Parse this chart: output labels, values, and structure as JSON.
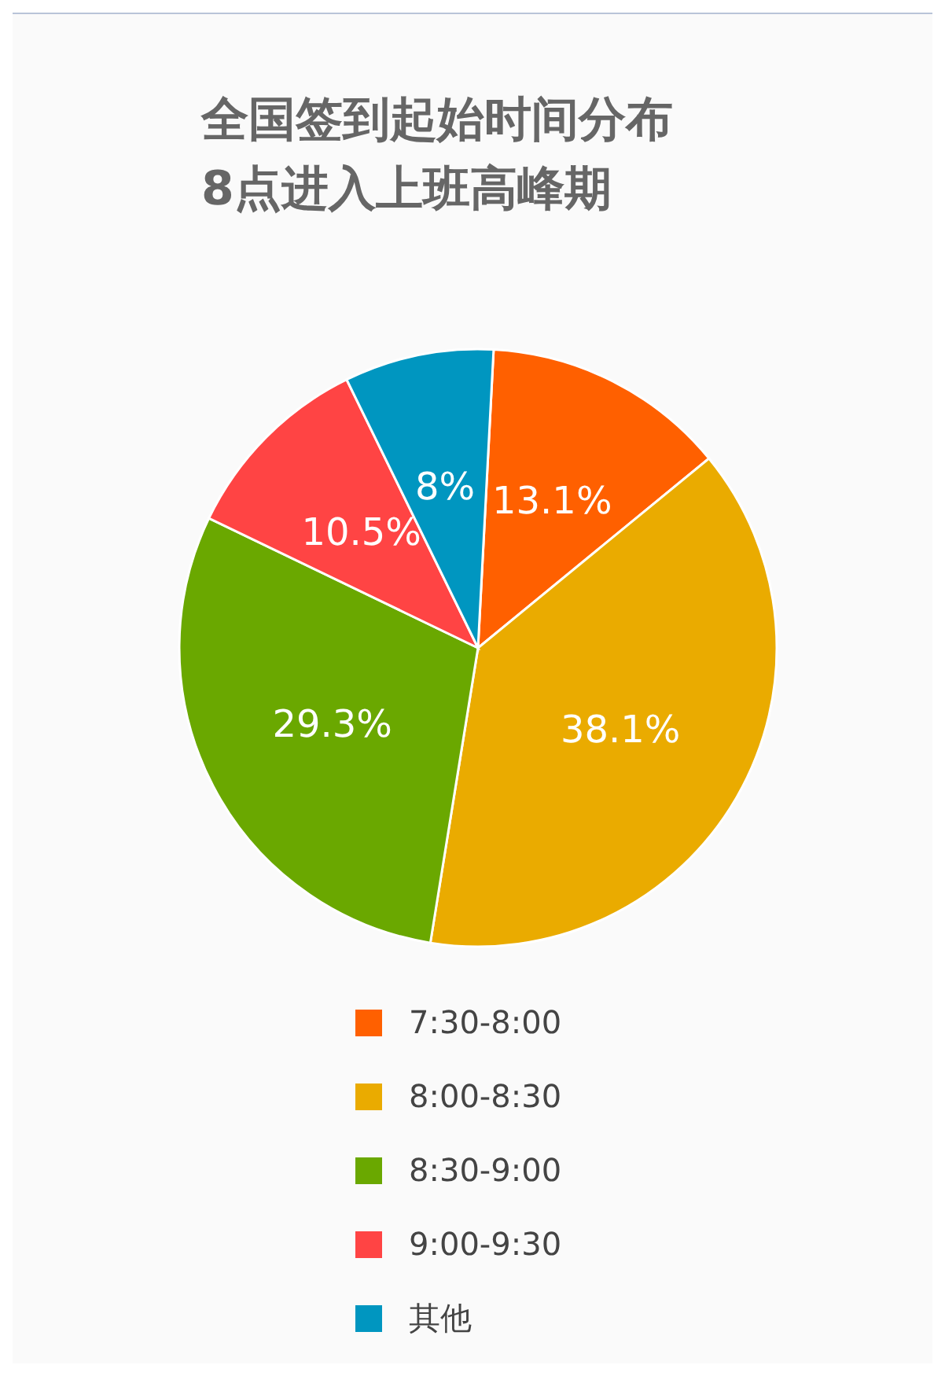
{
  "chart_data": {
    "type": "pie",
    "title": "全国签到起始时间分布",
    "subtitle": "8点进入上班高峰期",
    "categories": [
      "7:30-8:00",
      "8:00-8:30",
      "8:30-9:00",
      "9:00-9:30",
      "其他"
    ],
    "values": [
      13.1,
      38.1,
      29.3,
      10.5,
      8
    ],
    "value_labels": [
      "13.1%",
      "38.1%",
      "29.3%",
      "10.5%",
      "8%"
    ],
    "colors": [
      "#ff6000",
      "#eaab00",
      "#6aa800",
      "#ff4444",
      "#0096c0"
    ],
    "legend": "bottom"
  }
}
